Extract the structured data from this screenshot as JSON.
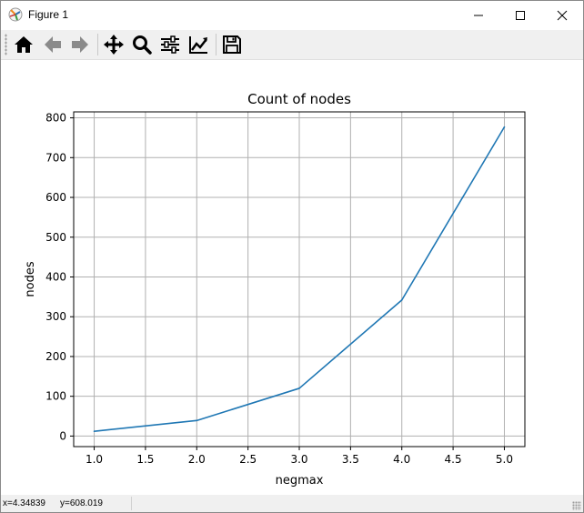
{
  "window": {
    "title": "Figure 1",
    "controls": {
      "minimize": "minimize-icon",
      "maximize": "maximize-icon",
      "close": "close-icon"
    }
  },
  "toolbar": {
    "buttons": [
      {
        "name": "home",
        "icon": "home-icon"
      },
      {
        "name": "back",
        "icon": "arrow-left-icon"
      },
      {
        "name": "forward",
        "icon": "arrow-right-icon"
      },
      {
        "name": "pan",
        "icon": "move-icon"
      },
      {
        "name": "zoom",
        "icon": "magnifier-icon"
      },
      {
        "name": "configure-subplots",
        "icon": "sliders-icon"
      },
      {
        "name": "edit-axis",
        "icon": "line-chart-icon"
      },
      {
        "name": "save",
        "icon": "floppy-disk-icon"
      }
    ]
  },
  "statusbar": {
    "x_readout": "x=4.34839",
    "y_readout": "y=608.019"
  },
  "chart_data": {
    "type": "line",
    "title": "Count of nodes",
    "xlabel": "negmax",
    "ylabel": "nodes",
    "x": [
      1.0,
      2.0,
      3.0,
      4.0,
      5.0
    ],
    "series": [
      {
        "values": [
          12,
          39,
          120,
          342,
          777
        ],
        "color": "#1f77b4"
      }
    ],
    "xlim": [
      0.8,
      5.2
    ],
    "ylim": [
      -26.5,
      815
    ],
    "xticks": [
      1.0,
      1.5,
      2.0,
      2.5,
      3.0,
      3.5,
      4.0,
      4.5,
      5.0
    ],
    "xtick_labels": [
      "1.0",
      "1.5",
      "2.0",
      "2.5",
      "3.0",
      "3.5",
      "4.0",
      "4.5",
      "5.0"
    ],
    "yticks": [
      0,
      100,
      200,
      300,
      400,
      500,
      600,
      700,
      800
    ],
    "ytick_labels": [
      "0",
      "100",
      "200",
      "300",
      "400",
      "500",
      "600",
      "700",
      "800"
    ],
    "grid": true
  }
}
